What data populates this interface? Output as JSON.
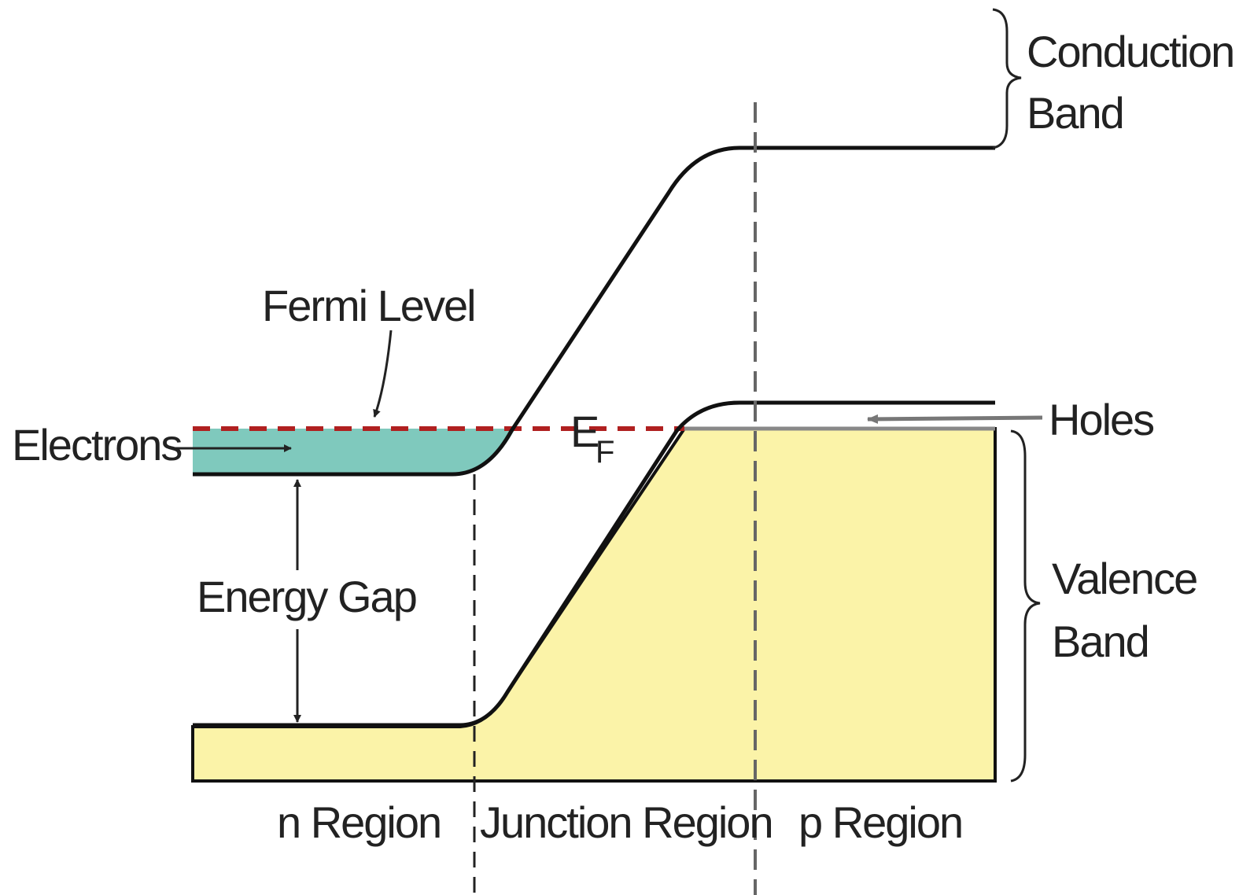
{
  "labels": {
    "conduction_band": [
      "Conduction",
      "Band"
    ],
    "fermi_level": "Fermi Level",
    "electrons": "Electrons",
    "fermi_symbol": {
      "symbol": "E",
      "subscript": "F"
    },
    "holes": "Holes",
    "energy_gap": "Energy Gap",
    "valence_band": [
      "Valence",
      "Band"
    ],
    "n_region": "n Region",
    "junction_region": "Junction Region",
    "p_region": "p Region"
  }
}
